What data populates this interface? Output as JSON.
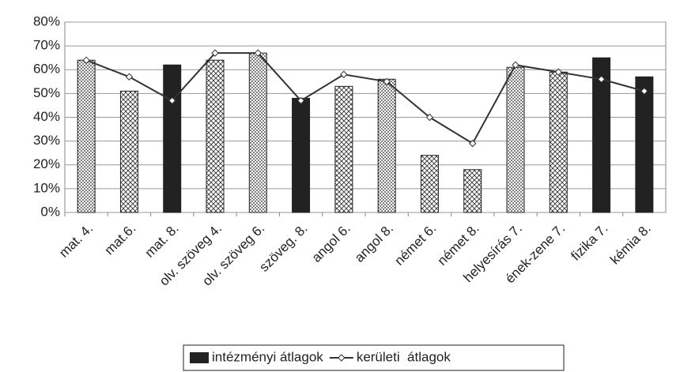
{
  "chart_data": {
    "type": "bar_line",
    "categories": [
      "mat. 4.",
      "mat.6.",
      "mat. 8.",
      "olv. szöveg 4.",
      "olv. szöveg 6.",
      "szöveg. 8.",
      "angol 6.",
      "angol 8.",
      "német 6.",
      "német 8.",
      "helyesírás 7.",
      "ének-zene 7.",
      "fizika 7.",
      "kémia  8."
    ],
    "series": [
      {
        "name": "intézményi átlagok",
        "type": "bar",
        "color": "#222222",
        "patterns": [
          "dots",
          "cross",
          "solid",
          "cross",
          "dots",
          "solid",
          "cross",
          "dots",
          "cross",
          "cross",
          "dots",
          "cross",
          "solid",
          "solid"
        ],
        "values": [
          64,
          51,
          62,
          64,
          67,
          48,
          53,
          56,
          24,
          18,
          61,
          59,
          65,
          57
        ]
      },
      {
        "name": "kerületi  átlagok",
        "type": "line",
        "color": "#333333",
        "values": [
          64,
          57,
          47,
          67,
          67,
          47,
          58,
          55,
          40,
          29,
          62,
          59,
          56,
          51
        ]
      }
    ],
    "ylim": [
      0,
      80
    ],
    "yticks": [
      {
        "value": 0,
        "label": "0%"
      },
      {
        "value": 10,
        "label": "10%"
      },
      {
        "value": 20,
        "label": "20%"
      },
      {
        "value": 30,
        "label": "30%"
      },
      {
        "value": 40,
        "label": "40%"
      },
      {
        "value": 50,
        "label": "50%"
      },
      {
        "value": 60,
        "label": "60%"
      },
      {
        "value": 70,
        "label": "70%"
      },
      {
        "value": 80,
        "label": "80%"
      }
    ],
    "grid": true
  }
}
